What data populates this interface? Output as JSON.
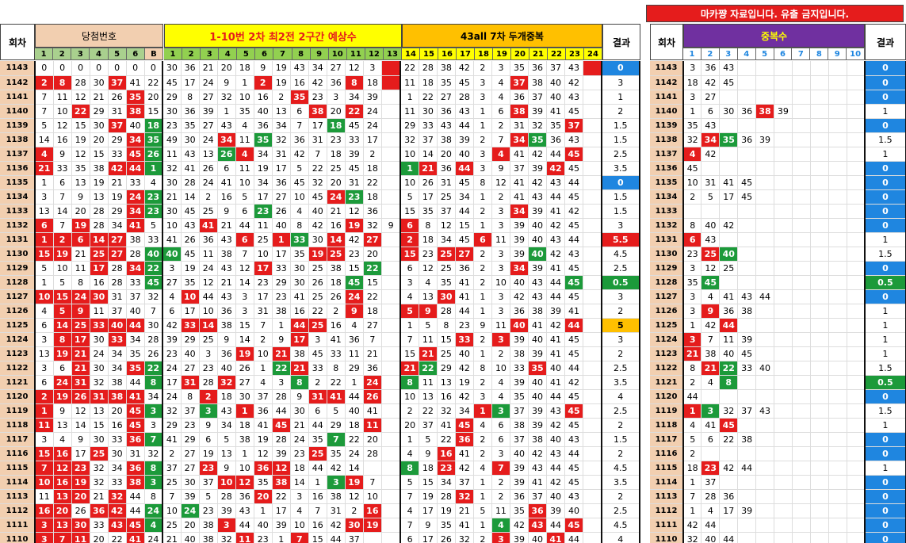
{
  "notice": "마카쨩 자료입니다. 유출 금지입니다.",
  "headers": {
    "round": "회차",
    "winning": "당첨번호",
    "pred": "1-10번 2차 최2전 2구간 예상수",
    "dup": "43all 7차 두개중복",
    "result": "결과",
    "round2": "회차",
    "dupcount": "중복수",
    "result2": "결과"
  },
  "win_cols": [
    "1",
    "2",
    "3",
    "4",
    "5",
    "6",
    "B"
  ],
  "pred_cols": [
    "1",
    "2",
    "3",
    "4",
    "5",
    "6",
    "7",
    "8",
    "9",
    "10",
    "11",
    "12",
    "13"
  ],
  "dup_cols": [
    "14",
    "15",
    "16",
    "17",
    "18",
    "19",
    "20",
    "21",
    "22",
    "23",
    "24"
  ],
  "cnt_cols": [
    "1",
    "2",
    "3",
    "4",
    "5",
    "6",
    "7",
    "8",
    "9",
    "10"
  ],
  "colors": {
    "red": "#e51c1c",
    "green": "#1c9a3a",
    "blue": "#1f86e0",
    "orange": "#ffc000",
    "salmon": "#f2cfb0",
    "yellow": "#ffff00",
    "purple": "#7030a0"
  },
  "rows": [
    {
      "n": "1143",
      "w": "0 0 0 0 0 0 0",
      "p": "30 36 21 20 18 9 19 43 34 27 12 3 *",
      "d": "22 28 38 42 2 3 35 36 37 43 *",
      "r": "0",
      "c": "3 36 43",
      "r2": "0"
    },
    {
      "n": "1142",
      "w": "2* 8* 28 30 37* 41 22",
      "p": "45 17 24 9 1 2* 19 16 42 36 8* 18 *",
      "d": "11 18 35 45 3 4 37* 38 40 42",
      "r": "3",
      "c": "18 42 45",
      "r2": "0"
    },
    {
      "n": "1141",
      "w": "7 11 12 21 26 35* 20",
      "p": "29 8 27 32 10 16 2 35* 23 3 34 39",
      "d": "1 22 27 28 3 4 36 37 40 43",
      "r": "1",
      "c": "3 27",
      "r2": "0"
    },
    {
      "n": "1140",
      "w": "7 10 22* 29 31 38* 15",
      "p": "30 36 39 1 35 40 13 6 38* 20 22* 24",
      "d": "11 30 36 43 1 6 38* 39 41 45",
      "r": "2",
      "c": "1 6 30 36 38* 39",
      "r2": "1"
    },
    {
      "n": "1139",
      "w": "5 12 15 30 37* 40 18+",
      "p": "23 35 27 43 4 36 34 7 17 18+ 45 24",
      "d": "29 33 43 44 1 2 31 32 35 37*",
      "r": "1.5",
      "c": "35 43",
      "r2": "0"
    },
    {
      "n": "1138",
      "w": "14 16 19 20 29 34* 35+",
      "p": "49 30 24 34* 11 35+ 32 36 31 23 33 17",
      "d": "32 37 38 39 2 7 34* 35+ 36 43",
      "r": "1.5",
      "c": "32 34* 35+ 36 39",
      "r2": "1.5"
    },
    {
      "n": "1137",
      "w": "4* 9 12 15 33 45* 26+",
      "p": "11 43 13 26+ 4* 34 31 42 7 18 39 2",
      "d": "10 14 20 40 3 4* 41 42 44 45*",
      "r": "2.5",
      "c": "4* 42",
      "r2": "1"
    },
    {
      "n": "1136",
      "w": "21* 33 35 38 42* 44* 1+",
      "p": "32 41 26 6 11 19 17 5 22 25 45 18",
      "d": "1+ 21* 36 44* 3 9 37 39 42* 45",
      "r": "3.5",
      "c": "45",
      "r2": "0"
    },
    {
      "n": "1135",
      "w": "1 6 13 19 21 33 4",
      "p": "30 28 24 41 10 34 36 45 32 20 31 22",
      "d": "10 26 31 45 8 12 41 42 43 44",
      "r": "0",
      "c": "10 31 41 45",
      "r2": "0"
    },
    {
      "n": "1134",
      "w": "3 7 9 13 19 24* 23+",
      "p": "21 14 2 16 5 17 27 10 45 24* 23+ 18",
      "d": "5 17 25 34 1 2 41 43 44 45",
      "r": "1.5",
      "c": "2 5 17 45",
      "r2": "0"
    },
    {
      "n": "1133",
      "w": "13 14 20 28 29 34* 23+",
      "p": "30 45 25 9 6 23+ 26 4 40 21 12 36",
      "d": "15 35 37 44 2 3 34* 39 41 42",
      "r": "1.5",
      "c": "",
      "r2": "0"
    },
    {
      "n": "1132",
      "w": "6* 7 19* 28 34 41* 5",
      "p": "10 43 41* 21 44 11 40 8 42 16 19* 32 9",
      "d": "6* 8 12 15 1 3 39 40 42 45",
      "r": "3",
      "c": "8 40 42",
      "r2": "0"
    },
    {
      "n": "1131",
      "w": "1* 2* 6* 14* 27* 38 33",
      "p": "41 26 36 43 6* 25 1* 33+ 30 14* 42 27*",
      "d": "2* 18 34 45 6* 11 39 40 43 44",
      "r": "5.5",
      "c": "6* 43",
      "r2": "1"
    },
    {
      "n": "1130",
      "w": "15* 19* 21 25* 27* 28 40+",
      "p": "40+ 45 11 38 7 10 17 35 19* 25* 23 20",
      "d": "15* 23 25* 27* 2 3 39 40+ 42 43",
      "r": "4.5",
      "c": "23 25* 40+",
      "r2": "1.5"
    },
    {
      "n": "1129",
      "w": "5 10 11 17* 28 34* 22+",
      "p": "3 19 24 43 12 17* 33 30 25 38 15 22+",
      "d": "6 12 25 36 2 3 34* 39 41 45",
      "r": "2.5",
      "c": "3 12 25",
      "r2": "0"
    },
    {
      "n": "1128",
      "w": "1 5 8 16 28 33 45+",
      "p": "27 35 12 21 14 23 29 30 26 18 45+ 15",
      "d": "3 4 35 41 2 10 40 43 44 45+",
      "r": "0.5",
      "c": "35 45+",
      "r2": "0.5"
    },
    {
      "n": "1127",
      "w": "10* 15* 24* 30* 31 37 32",
      "p": "4 10* 44 43 3 17 23 41 25 26 24* 22",
      "d": "4 13 30* 41 1 3 42 43 44 45",
      "r": "3",
      "c": "3 4 41 43 44",
      "r2": "0"
    },
    {
      "n": "1126",
      "w": "4 5* 9* 11 37 40 7",
      "p": "6 17 10 36 3 31 38 16 22 2 9* 18",
      "d": "5* 9* 28 44 1 3 36 38 39 41",
      "r": "2",
      "c": "3 9* 36 38",
      "r2": "1"
    },
    {
      "n": "1125",
      "w": "6 14* 25* 33* 40* 44* 30",
      "p": "42 33* 14* 38 15 7 1 44* 25* 16 4 27",
      "d": "1 5 8 23 9 11 40* 41 42 44*",
      "r": "5",
      "c": "1 42 44*",
      "r2": "1"
    },
    {
      "n": "1124",
      "w": "3 8* 17* 30 33* 34 28",
      "p": "39 29 25 9 14 2 9 17* 3 41 36 7",
      "d": "7 11 15 33* 2 3* 39 40 41 45",
      "r": "3",
      "c": "3* 7 11 39",
      "r2": "1"
    },
    {
      "n": "1123",
      "w": "13 19* 21* 24 34 35 26",
      "p": "23 40 3 36 19* 10 21* 38 45 33 11 21",
      "d": "15 21* 25 40 1 2 38 39 41 45",
      "r": "2",
      "c": "21* 38 40 45",
      "r2": "1"
    },
    {
      "n": "1122",
      "w": "3 6 21* 30 34 35* 22+",
      "p": "24 27 23 40 26 1 22+ 21* 33 8 29 36",
      "d": "21* 22+ 29 42 8 10 33 35* 40 44",
      "r": "2.5",
      "c": "8 21* 22+ 33 40",
      "r2": "1.5"
    },
    {
      "n": "1121",
      "w": "6 24* 31* 32 38 44 8+",
      "p": "17 31* 28 32* 27 4 3 8+ 2 22 1 24*",
      "d": "8+ 11 13 19 2 4 39 40 41 42",
      "r": "3.5",
      "c": "2 4 8+",
      "r2": "0.5"
    },
    {
      "n": "1120",
      "w": "2* 19* 26* 31* 38* 41* 34",
      "p": "24 8 2* 18 30 37 28 9 31* 41* 44 26*",
      "d": "10 13 16 42 3 4 35 40 44 45",
      "r": "4",
      "c": "44",
      "r2": "0"
    },
    {
      "n": "1119",
      "w": "1* 9 12 13 20 45* 3+",
      "p": "32 37 3+ 43 1* 36 44 30 6 5 40 41",
      "d": "2 22 32 34 1* 3+ 37 39 43 45*",
      "r": "2.5",
      "c": "1* 3+ 32 37 43",
      "r2": "1.5"
    },
    {
      "n": "1118",
      "w": "11* 13 14 15 16 45* 3",
      "p": "29 23 9 34 18 41 45* 21 44 29 18 11*",
      "d": "20 37 41 45* 4 6 38 39 42 45",
      "r": "2",
      "c": "4 41 45*",
      "r2": "1"
    },
    {
      "n": "1117",
      "w": "3 4 9 30 33 36* 7+",
      "p": "41 29 6 5 38 19 28 24 35 7+ 22 20",
      "d": "1 5 22 36* 2 6 37 38 40 43",
      "r": "1.5",
      "c": "5 6 22 38",
      "r2": "0"
    },
    {
      "n": "1116",
      "w": "15* 16* 17 25* 30 31 32",
      "p": "2 27 19 13 1 12 39 23 25* 35 24 28",
      "d": "4 9 16* 41 2 3 40 42 43 44",
      "r": "2",
      "c": "2",
      "r2": "0"
    },
    {
      "n": "1115",
      "w": "7* 12* 23* 32 34 36* 8+",
      "p": "37 27 23* 9 10 36* 12* 18 44 42 14",
      "d": "8+ 18 23* 42 4 7* 39 43 44 45",
      "r": "4.5",
      "c": "18 23* 42 44",
      "r2": "1"
    },
    {
      "n": "1114",
      "w": "10* 16* 19* 32 33 38* 3+",
      "p": "25 30 37 10* 12* 35 38* 14 1 3+ 19* 7",
      "d": "5 15 34 37 1 2 39 41 42 45",
      "r": "3.5",
      "c": "1 37",
      "r2": "0"
    },
    {
      "n": "1113",
      "w": "11 13* 20* 21 32* 44 8",
      "p": "7 39 5 28 36 20* 22 3 16 38 12 10",
      "d": "7 19 28 32* 1 2 36 37 40 43",
      "r": "2",
      "c": "7 28 36",
      "r2": "0"
    },
    {
      "n": "1112",
      "w": "16* 20* 26 36* 42* 44 24+",
      "p": "10 24+ 23 39 43 1 17 4 7 31 2 16*",
      "d": "4 17 19 21 5 11 35 36* 39 40",
      "r": "2.5",
      "c": "1 4 17 39",
      "r2": "0"
    },
    {
      "n": "1111",
      "w": "3* 13* 30* 33 43* 45* 4+",
      "p": "25 20 38 3* 44 40 39 10 16 42 30* 19*",
      "d": "7 9 35 41 1 4+ 42 43* 44 45*",
      "r": "4.5",
      "c": "42 44",
      "r2": "0"
    },
    {
      "n": "1110",
      "w": "3* 7* 11* 20 22 41* 24",
      "p": "21 40 38 32 11* 23 1 7* 15 44 37",
      "d": "6 17 26 32 2 3* 39 40 41* 44",
      "r": "4",
      "c": "32 40 44",
      "r2": "0"
    }
  ]
}
